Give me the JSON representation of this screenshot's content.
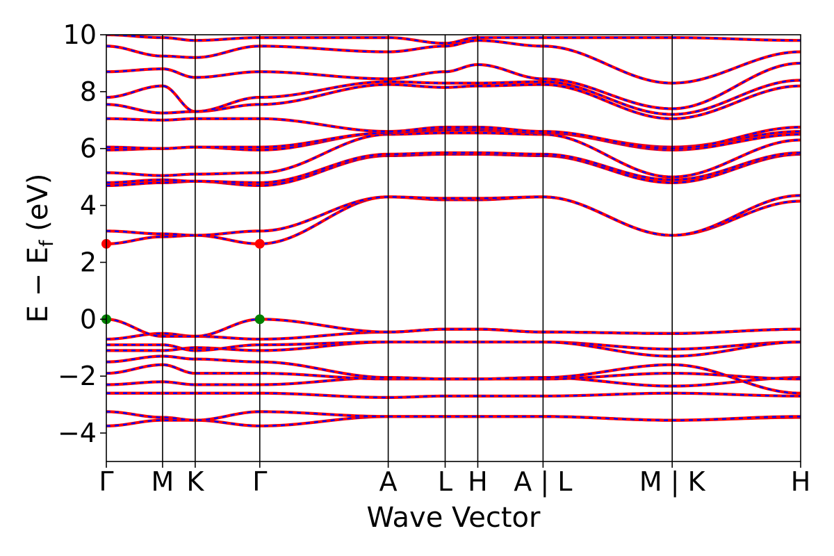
{
  "chart_data": {
    "type": "line",
    "xlabel": "Wave Vector",
    "ylabel_main": "E − E",
    "ylabel_sub": "f",
    "ylabel_unit": " (eV)",
    "ylim": [
      -5,
      10
    ],
    "yticks": [
      -4,
      -2,
      0,
      2,
      4,
      6,
      8,
      10
    ],
    "ytick_labels": [
      "−4",
      "−2",
      "0",
      "2",
      "4",
      "6",
      "8",
      "10"
    ],
    "xticks": [
      0,
      0.081,
      0.128,
      0.221,
      0.406,
      0.488,
      0.535,
      0.629,
      0.815,
      1.0
    ],
    "xtick_labels": [
      "Γ",
      "M",
      "K",
      "Γ",
      "A",
      "L",
      "H",
      "A | L",
      "M | K",
      "H"
    ],
    "grid": false,
    "line_colors": {
      "band": "#ff0000",
      "band_overlay": "#0000ff",
      "vbm": "#008000",
      "cbm": "#ff0000"
    },
    "kpoints": [
      0,
      0.081,
      0.128,
      0.221,
      0.406,
      0.488,
      0.535,
      0.629,
      0.815,
      1.0
    ],
    "bands": [
      [
        -3.75,
        -3.55,
        -3.55,
        -3.75,
        -3.42,
        -3.42,
        -3.42,
        -3.42,
        -3.55,
        -3.45
      ],
      [
        -3.25,
        -3.45,
        -3.55,
        -3.25,
        -3.42,
        -3.42,
        -3.42,
        -3.42,
        -3.55,
        -3.42
      ],
      [
        -2.6,
        -2.6,
        -2.6,
        -2.6,
        -2.75,
        -2.7,
        -2.7,
        -2.7,
        -2.6,
        -2.7
      ],
      [
        -2.3,
        -2.2,
        -2.3,
        -2.3,
        -2.05,
        -2.1,
        -2.1,
        -2.05,
        -2.35,
        -2.05
      ],
      [
        -1.9,
        -1.6,
        -1.9,
        -1.9,
        -2.1,
        -2.1,
        -2.1,
        -2.1,
        -1.9,
        -2.1
      ],
      [
        -1.5,
        -1.3,
        -1.4,
        -1.5,
        -2.05,
        -2.1,
        -2.1,
        -2.05,
        -1.6,
        -2.6
      ],
      [
        -1.1,
        -1.1,
        -1.0,
        -1.1,
        -0.8,
        -0.8,
        -0.8,
        -0.8,
        -1.05,
        -0.8
      ],
      [
        -0.9,
        -0.9,
        -1.1,
        -0.9,
        -0.8,
        -0.8,
        -0.8,
        -0.8,
        -1.3,
        -0.8
      ],
      [
        -0.7,
        -0.5,
        -0.6,
        -0.7,
        -0.45,
        -0.35,
        -0.35,
        -0.45,
        -0.5,
        -0.35
      ],
      [
        0.0,
        -0.6,
        -0.6,
        0.0,
        -0.45,
        -0.35,
        -0.35,
        -0.45,
        -0.5,
        -0.35
      ],
      [
        2.65,
        2.9,
        2.95,
        2.65,
        4.3,
        4.2,
        4.2,
        4.3,
        2.95,
        4.15
      ],
      [
        3.1,
        3.0,
        2.95,
        3.1,
        4.3,
        4.25,
        4.25,
        4.3,
        2.95,
        4.35
      ],
      [
        4.7,
        4.8,
        4.85,
        4.7,
        5.75,
        5.8,
        5.8,
        5.75,
        4.8,
        5.8
      ],
      [
        4.8,
        4.9,
        4.85,
        4.8,
        5.8,
        5.85,
        5.85,
        5.8,
        4.9,
        5.85
      ],
      [
        5.15,
        5.05,
        5.1,
        5.15,
        6.5,
        6.55,
        6.55,
        6.5,
        5.0,
        6.3
      ],
      [
        5.95,
        6.0,
        6.05,
        5.95,
        6.55,
        6.65,
        6.65,
        6.55,
        5.95,
        6.5
      ],
      [
        6.05,
        6.0,
        6.05,
        6.05,
        6.55,
        6.7,
        6.7,
        6.55,
        6.05,
        6.6
      ],
      [
        7.05,
        7.0,
        7.05,
        7.05,
        6.6,
        6.75,
        6.75,
        6.6,
        6.0,
        6.75
      ],
      [
        7.55,
        7.25,
        7.3,
        7.55,
        8.25,
        8.15,
        8.2,
        8.25,
        7.05,
        8.2
      ],
      [
        7.8,
        8.2,
        7.3,
        7.8,
        8.35,
        8.3,
        8.3,
        8.35,
        7.2,
        8.4
      ],
      [
        8.7,
        8.8,
        8.5,
        8.7,
        8.45,
        8.7,
        8.95,
        8.45,
        7.4,
        9.0
      ],
      [
        9.6,
        9.25,
        9.2,
        9.6,
        9.4,
        9.6,
        9.8,
        9.6,
        8.3,
        9.4
      ],
      [
        10.0,
        9.9,
        9.8,
        9.9,
        9.9,
        9.7,
        9.9,
        9.9,
        9.9,
        9.8
      ]
    ],
    "vbm_points": [
      [
        0,
        0.0
      ],
      [
        0.221,
        0.0
      ]
    ],
    "cbm_points": [
      [
        0,
        2.65
      ],
      [
        0.221,
        2.65
      ]
    ]
  }
}
